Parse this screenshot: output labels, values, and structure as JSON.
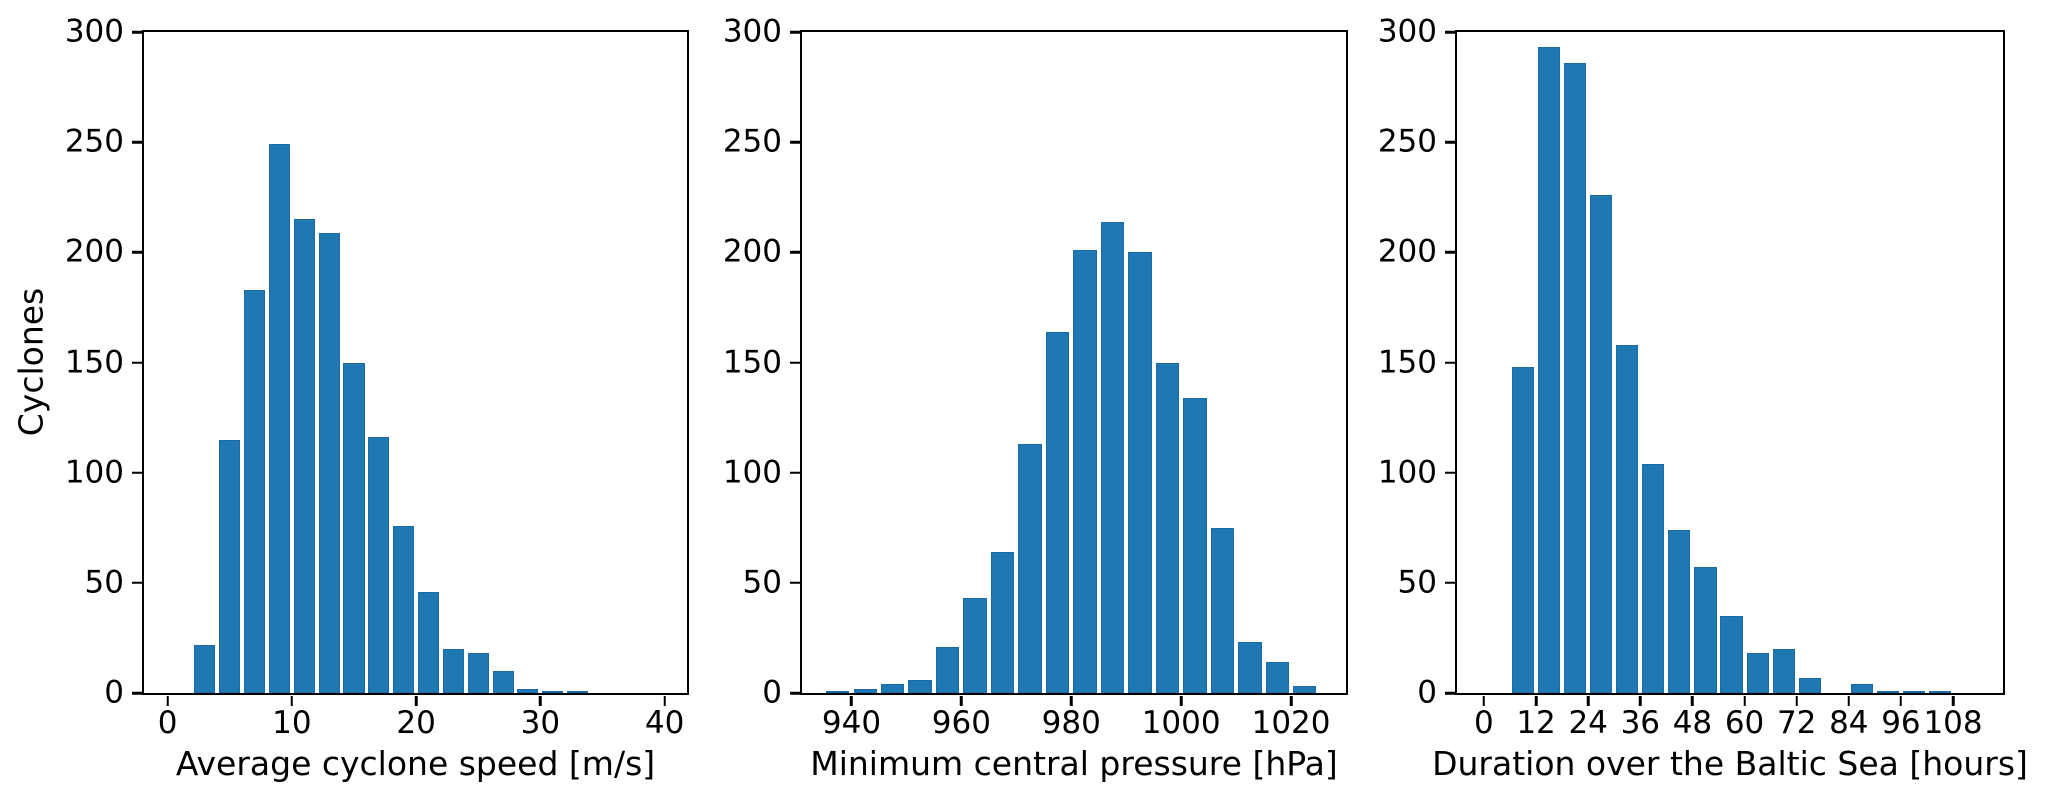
{
  "style": {
    "background": "#ffffff",
    "bar_color": "#1f77b4",
    "bar_edge_color": "#1a6aa5",
    "axis_color": "#000000",
    "bar_rwidth": 0.85
  },
  "chart_data": [
    {
      "type": "bar",
      "name": "average-cyclone-speed-histogram",
      "title": "",
      "xlabel": "Average cyclone speed [m/s]",
      "ylabel": "Cyclones",
      "bin_edges": [
        2,
        4,
        6,
        8,
        10,
        12,
        14,
        16,
        18,
        20,
        22,
        24,
        26,
        28,
        30,
        32,
        34
      ],
      "counts": [
        22,
        115,
        183,
        249,
        215,
        209,
        150,
        116,
        76,
        46,
        20,
        18,
        10,
        2,
        1,
        1
      ],
      "xticks": [
        0,
        10,
        20,
        30,
        40
      ],
      "yticks": [
        0,
        50,
        100,
        150,
        200,
        250,
        300
      ],
      "xlim": [
        -1.9,
        41.8
      ],
      "ylim": [
        0,
        300
      ],
      "grid": false,
      "legend": null
    },
    {
      "type": "bar",
      "name": "minimum-central-pressure-histogram",
      "title": "",
      "xlabel": "Minimum central pressure [hPa]",
      "ylabel": "",
      "bin_edges": [
        935,
        940,
        945,
        950,
        955,
        960,
        965,
        970,
        975,
        980,
        985,
        990,
        995,
        1000,
        1005,
        1010,
        1015,
        1020,
        1025
      ],
      "counts": [
        1,
        2,
        4,
        6,
        21,
        43,
        64,
        113,
        164,
        201,
        214,
        200,
        150,
        134,
        75,
        23,
        14,
        3
      ],
      "xticks": [
        940,
        960,
        980,
        1000,
        1020
      ],
      "yticks": [
        0,
        50,
        100,
        150,
        200,
        250,
        300
      ],
      "xlim": [
        931,
        1030
      ],
      "ylim": [
        0,
        300
      ],
      "grid": false,
      "legend": null
    },
    {
      "type": "bar",
      "name": "duration-over-baltic-sea-histogram",
      "title": "",
      "xlabel": "Duration over the Baltic Sea [hours]",
      "ylabel": "",
      "bin_edges": [
        6,
        12,
        18,
        24,
        30,
        36,
        42,
        48,
        54,
        60,
        66,
        72,
        78,
        84,
        90,
        96,
        102,
        108
      ],
      "counts": [
        148,
        293,
        286,
        226,
        158,
        104,
        74,
        57,
        35,
        18,
        20,
        7,
        0,
        4,
        1,
        1,
        1
      ],
      "xticks": [
        0,
        12,
        24,
        36,
        48,
        60,
        72,
        84,
        96,
        108
      ],
      "yticks": [
        0,
        50,
        100,
        150,
        200,
        250,
        300
      ],
      "xlim": [
        -6.2,
        119.5
      ],
      "ylim": [
        0,
        300
      ],
      "grid": false,
      "legend": null
    }
  ]
}
